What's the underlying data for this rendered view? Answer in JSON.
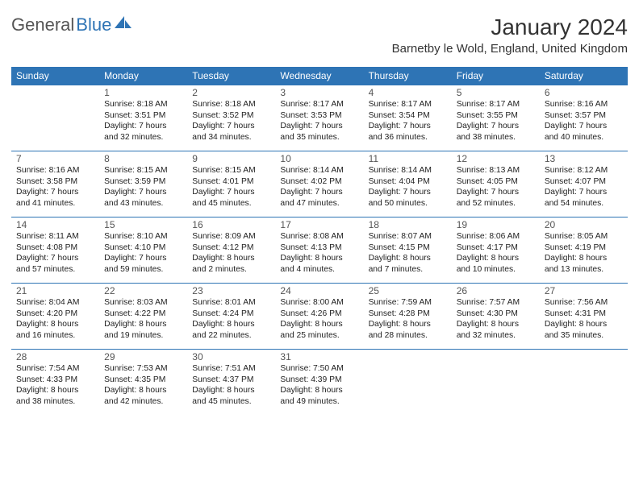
{
  "logo": {
    "text1": "General",
    "text2": "Blue"
  },
  "title": "January 2024",
  "location": "Barnetby le Wold, England, United Kingdom",
  "colors": {
    "header_bg": "#2e74b5",
    "header_text": "#ffffff",
    "border": "#2e74b5",
    "logo_gray": "#555555",
    "logo_blue": "#2e74b5",
    "text": "#222222",
    "bg": "#ffffff"
  },
  "typography": {
    "title_size": 28,
    "location_size": 15,
    "dayheader_size": 12,
    "daynum_size": 12,
    "info_size": 10.3
  },
  "days_of_week": [
    "Sunday",
    "Monday",
    "Tuesday",
    "Wednesday",
    "Thursday",
    "Friday",
    "Saturday"
  ],
  "weeks": [
    [
      null,
      {
        "n": "1",
        "sr": "8:18 AM",
        "ss": "3:51 PM",
        "dl": "7 hours and 32 minutes."
      },
      {
        "n": "2",
        "sr": "8:18 AM",
        "ss": "3:52 PM",
        "dl": "7 hours and 34 minutes."
      },
      {
        "n": "3",
        "sr": "8:17 AM",
        "ss": "3:53 PM",
        "dl": "7 hours and 35 minutes."
      },
      {
        "n": "4",
        "sr": "8:17 AM",
        "ss": "3:54 PM",
        "dl": "7 hours and 36 minutes."
      },
      {
        "n": "5",
        "sr": "8:17 AM",
        "ss": "3:55 PM",
        "dl": "7 hours and 38 minutes."
      },
      {
        "n": "6",
        "sr": "8:16 AM",
        "ss": "3:57 PM",
        "dl": "7 hours and 40 minutes."
      }
    ],
    [
      {
        "n": "7",
        "sr": "8:16 AM",
        "ss": "3:58 PM",
        "dl": "7 hours and 41 minutes."
      },
      {
        "n": "8",
        "sr": "8:15 AM",
        "ss": "3:59 PM",
        "dl": "7 hours and 43 minutes."
      },
      {
        "n": "9",
        "sr": "8:15 AM",
        "ss": "4:01 PM",
        "dl": "7 hours and 45 minutes."
      },
      {
        "n": "10",
        "sr": "8:14 AM",
        "ss": "4:02 PM",
        "dl": "7 hours and 47 minutes."
      },
      {
        "n": "11",
        "sr": "8:14 AM",
        "ss": "4:04 PM",
        "dl": "7 hours and 50 minutes."
      },
      {
        "n": "12",
        "sr": "8:13 AM",
        "ss": "4:05 PM",
        "dl": "7 hours and 52 minutes."
      },
      {
        "n": "13",
        "sr": "8:12 AM",
        "ss": "4:07 PM",
        "dl": "7 hours and 54 minutes."
      }
    ],
    [
      {
        "n": "14",
        "sr": "8:11 AM",
        "ss": "4:08 PM",
        "dl": "7 hours and 57 minutes."
      },
      {
        "n": "15",
        "sr": "8:10 AM",
        "ss": "4:10 PM",
        "dl": "7 hours and 59 minutes."
      },
      {
        "n": "16",
        "sr": "8:09 AM",
        "ss": "4:12 PM",
        "dl": "8 hours and 2 minutes."
      },
      {
        "n": "17",
        "sr": "8:08 AM",
        "ss": "4:13 PM",
        "dl": "8 hours and 4 minutes."
      },
      {
        "n": "18",
        "sr": "8:07 AM",
        "ss": "4:15 PM",
        "dl": "8 hours and 7 minutes."
      },
      {
        "n": "19",
        "sr": "8:06 AM",
        "ss": "4:17 PM",
        "dl": "8 hours and 10 minutes."
      },
      {
        "n": "20",
        "sr": "8:05 AM",
        "ss": "4:19 PM",
        "dl": "8 hours and 13 minutes."
      }
    ],
    [
      {
        "n": "21",
        "sr": "8:04 AM",
        "ss": "4:20 PM",
        "dl": "8 hours and 16 minutes."
      },
      {
        "n": "22",
        "sr": "8:03 AM",
        "ss": "4:22 PM",
        "dl": "8 hours and 19 minutes."
      },
      {
        "n": "23",
        "sr": "8:01 AM",
        "ss": "4:24 PM",
        "dl": "8 hours and 22 minutes."
      },
      {
        "n": "24",
        "sr": "8:00 AM",
        "ss": "4:26 PM",
        "dl": "8 hours and 25 minutes."
      },
      {
        "n": "25",
        "sr": "7:59 AM",
        "ss": "4:28 PM",
        "dl": "8 hours and 28 minutes."
      },
      {
        "n": "26",
        "sr": "7:57 AM",
        "ss": "4:30 PM",
        "dl": "8 hours and 32 minutes."
      },
      {
        "n": "27",
        "sr": "7:56 AM",
        "ss": "4:31 PM",
        "dl": "8 hours and 35 minutes."
      }
    ],
    [
      {
        "n": "28",
        "sr": "7:54 AM",
        "ss": "4:33 PM",
        "dl": "8 hours and 38 minutes."
      },
      {
        "n": "29",
        "sr": "7:53 AM",
        "ss": "4:35 PM",
        "dl": "8 hours and 42 minutes."
      },
      {
        "n": "30",
        "sr": "7:51 AM",
        "ss": "4:37 PM",
        "dl": "8 hours and 45 minutes."
      },
      {
        "n": "31",
        "sr": "7:50 AM",
        "ss": "4:39 PM",
        "dl": "8 hours and 49 minutes."
      },
      null,
      null,
      null
    ]
  ],
  "labels": {
    "sunrise": "Sunrise:",
    "sunset": "Sunset:",
    "daylight": "Daylight:"
  }
}
